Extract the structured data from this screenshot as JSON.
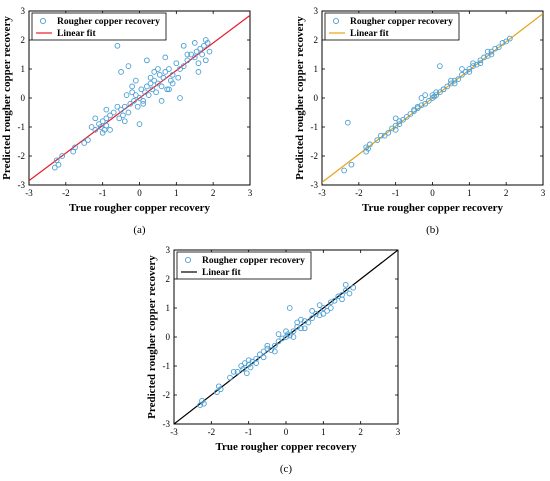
{
  "colors": {
    "points": "#4a9fd4",
    "fit_a": "#e8192c",
    "fit_b": "#e6a21b",
    "fit_c": "#000000"
  },
  "chart_data": [
    {
      "type": "scatter",
      "panel_label": "(a)",
      "xlabel": "True rougher copper recovery",
      "ylabel": "Predicted rougher copper recovery",
      "xlim": [
        -3,
        3
      ],
      "ylim": [
        -3,
        3
      ],
      "xticks": [
        "-3",
        "-2",
        "-1",
        "0",
        "1",
        "2",
        "3"
      ],
      "yticks": [
        "-3",
        "-2",
        "-1",
        "0",
        "1",
        "2",
        "3"
      ],
      "legend_position": "top-left",
      "fit_color_key": "fit_a",
      "series": [
        {
          "name": "Rougher copper recovery",
          "marker": "circle",
          "x": [
            -2.3,
            -2.2,
            -2.25,
            -2.1,
            -1.8,
            -1.75,
            -1.5,
            -1.4,
            -1.3,
            -1.2,
            -1.1,
            -1.05,
            -1.0,
            -1.0,
            -0.95,
            -0.9,
            -0.9,
            -0.8,
            -0.7,
            -0.6,
            -0.55,
            -0.5,
            -0.45,
            -0.4,
            -0.35,
            -0.3,
            -0.25,
            -0.2,
            -0.15,
            -0.1,
            -0.05,
            0.0,
            0.05,
            0.1,
            0.15,
            0.2,
            0.25,
            0.3,
            0.35,
            0.4,
            0.45,
            0.5,
            0.55,
            0.6,
            0.65,
            0.7,
            0.75,
            0.8,
            0.85,
            0.9,
            1.0,
            1.05,
            1.1,
            1.2,
            1.3,
            1.4,
            1.5,
            1.55,
            1.6,
            1.65,
            1.7,
            1.75,
            1.8,
            1.85,
            1.9,
            -0.6,
            -0.3,
            0.2,
            0.6,
            1.1,
            1.5,
            -1.2,
            -0.8,
            0.0,
            0.4,
            0.9,
            1.3,
            1.8,
            -0.4,
            0.3,
            -0.1,
            0.7,
            1.6,
            -0.5,
            0.5,
            -0.9,
            0.1,
            -0.2,
            1.2,
            0.8
          ],
          "y": [
            -2.4,
            -2.3,
            -2.15,
            -2.0,
            -1.85,
            -1.7,
            -1.55,
            -1.45,
            -1.0,
            -1.1,
            -0.9,
            -1.0,
            -1.2,
            -0.8,
            -1.1,
            -0.7,
            -0.95,
            -0.6,
            -0.5,
            -0.3,
            -0.7,
            -0.4,
            -0.6,
            -0.3,
            0.1,
            -0.5,
            -0.2,
            0.2,
            -0.1,
            0.1,
            -0.3,
            0.0,
            0.3,
            -0.1,
            0.2,
            0.4,
            0.1,
            0.5,
            0.3,
            0.6,
            0.2,
            0.5,
            0.8,
            0.4,
            0.7,
            0.9,
            0.3,
            1.0,
            0.6,
            0.8,
            1.2,
            0.7,
            1.0,
            1.1,
            1.3,
            1.5,
            1.4,
            1.6,
            1.2,
            1.7,
            1.5,
            1.8,
            1.3,
            1.9,
            1.6,
            1.8,
            1.1,
            1.3,
            -0.1,
            0.0,
            1.9,
            -0.7,
            -1.1,
            -0.9,
            0.9,
            0.5,
            1.5,
            2.0,
            -0.8,
            0.7,
            0.6,
            1.4,
            0.9,
            0.9,
            1.0,
            -0.4,
            -0.2,
            0.4,
            1.8,
            0.3
          ]
        },
        {
          "name": "Linear fit",
          "slope": 0.95,
          "intercept": 0.0
        }
      ]
    },
    {
      "type": "scatter",
      "panel_label": "(b)",
      "xlabel": "True rougher copper recovery",
      "ylabel": "Predicted rougher copper recovery",
      "xlim": [
        -3,
        3
      ],
      "ylim": [
        -3,
        3
      ],
      "xticks": [
        "-3",
        "-2",
        "-1",
        "0",
        "1",
        "2",
        "3"
      ],
      "yticks": [
        "-3",
        "-2",
        "-1",
        "0",
        "1",
        "2",
        "3"
      ],
      "legend_position": "top-left",
      "fit_color_key": "fit_b",
      "series": [
        {
          "name": "Rougher copper recovery",
          "marker": "circle",
          "x": [
            -2.4,
            -2.3,
            -2.2,
            -1.8,
            -1.75,
            -1.7,
            -1.5,
            -1.3,
            -1.2,
            -1.1,
            -1.0,
            -1.0,
            -0.9,
            -0.8,
            -0.7,
            -0.6,
            -0.5,
            -0.4,
            -0.3,
            -0.2,
            -0.1,
            0.0,
            0.05,
            0.1,
            0.2,
            0.3,
            0.4,
            0.5,
            0.6,
            0.7,
            0.8,
            0.9,
            1.0,
            1.1,
            1.2,
            1.3,
            1.4,
            1.5,
            1.6,
            1.7,
            1.8,
            1.9,
            2.0,
            2.1,
            -1.0,
            -0.5,
            0.0,
            0.5,
            1.0,
            1.5,
            -0.2,
            0.3,
            0.8,
            1.3,
            -1.8,
            -1.4,
            -0.9,
            -0.4,
            0.1,
            0.6,
            1.1,
            1.6,
            0.2,
            -0.3
          ],
          "y": [
            -2.5,
            -0.85,
            -2.3,
            -1.85,
            -1.75,
            -1.6,
            -1.45,
            -1.3,
            -1.2,
            -1.05,
            -0.95,
            -0.7,
            -0.9,
            -0.75,
            -0.65,
            -0.55,
            -0.45,
            -0.35,
            -0.25,
            -0.2,
            -0.1,
            0.0,
            0.05,
            0.1,
            0.2,
            0.3,
            0.4,
            0.5,
            0.6,
            0.65,
            0.8,
            0.9,
            1.0,
            1.1,
            1.15,
            1.3,
            1.4,
            1.45,
            1.6,
            1.7,
            1.75,
            1.9,
            1.95,
            2.05,
            -1.1,
            -0.4,
            0.1,
            0.6,
            0.9,
            1.6,
            0.1,
            0.3,
            1.0,
            1.2,
            -1.7,
            -1.3,
            -0.8,
            -0.3,
            0.2,
            0.5,
            1.2,
            1.5,
            1.1,
            0.0
          ]
        },
        {
          "name": "Linear fit",
          "slope": 0.97,
          "intercept": 0.0
        }
      ]
    },
    {
      "type": "scatter",
      "panel_label": "(c)",
      "xlabel": "True rougher copper recovery",
      "ylabel": "Predicted rougher copper recovery",
      "xlim": [
        -3,
        3
      ],
      "ylim": [
        -3,
        3
      ],
      "xticks": [
        "-3",
        "-2",
        "-1",
        "0",
        "1",
        "2",
        "3"
      ],
      "yticks": [
        "-3",
        "-2",
        "-1",
        "0",
        "1",
        "2",
        "3"
      ],
      "legend_position": "top-left",
      "fit_color_key": "fit_c",
      "series": [
        {
          "name": "Rougher copper recovery",
          "marker": "circle",
          "x": [
            -2.3,
            -2.25,
            -2.2,
            -1.85,
            -1.8,
            -1.75,
            -1.5,
            -1.3,
            -1.2,
            -1.15,
            -1.1,
            -1.05,
            -1.0,
            -0.95,
            -0.9,
            -0.8,
            -0.7,
            -0.6,
            -0.5,
            -0.4,
            -0.3,
            -0.2,
            -0.1,
            0.0,
            0.05,
            0.1,
            0.2,
            0.3,
            0.4,
            0.5,
            0.6,
            0.7,
            0.8,
            0.9,
            1.0,
            1.1,
            1.2,
            1.3,
            1.4,
            1.5,
            1.6,
            1.7,
            1.8,
            -1.0,
            -0.5,
            0.0,
            0.5,
            1.0,
            1.5,
            -0.3,
            0.2,
            0.7,
            1.2,
            -1.4,
            -0.8,
            -0.2,
            0.3,
            0.9,
            1.6,
            0.1,
            0.4,
            -0.6
          ],
          "y": [
            -2.35,
            -2.2,
            -2.3,
            -1.9,
            -1.7,
            -1.8,
            -1.4,
            -1.2,
            -1.0,
            -1.1,
            -0.9,
            -1.25,
            -0.95,
            -1.05,
            -0.85,
            -0.75,
            -0.6,
            -0.5,
            -0.4,
            -0.45,
            -0.3,
            -0.15,
            -0.05,
            0.0,
            0.1,
            0.05,
            0.2,
            0.35,
            0.3,
            0.55,
            0.5,
            0.65,
            0.8,
            0.75,
            1.0,
            0.9,
            1.2,
            1.25,
            1.4,
            1.45,
            1.6,
            1.5,
            1.7,
            -0.8,
            -0.3,
            0.2,
            0.3,
            0.8,
            1.3,
            -0.5,
            0.0,
            0.9,
            1.0,
            -1.2,
            -0.9,
            0.1,
            0.5,
            1.1,
            1.8,
            1.0,
            0.6,
            -0.7
          ]
        },
        {
          "name": "Linear fit",
          "slope": 1.0,
          "intercept": 0.0
        }
      ]
    }
  ]
}
